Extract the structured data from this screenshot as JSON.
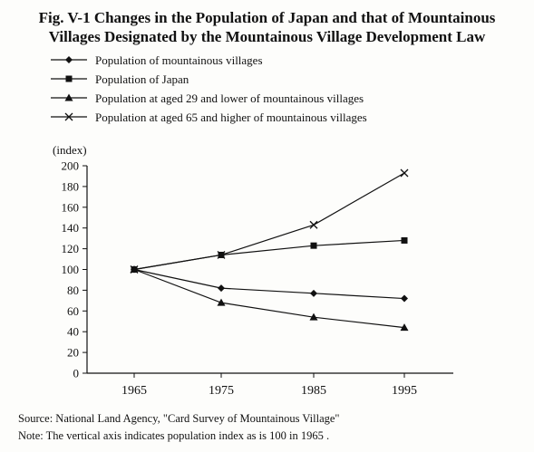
{
  "header": {
    "title_line1": "Fig. V-1   Changes in the Population of Japan and that of Mountainous",
    "title_line2": "Villages Designated by the Mountainous Village Development Law"
  },
  "legend": [
    {
      "label": "Population of mountainous villages",
      "marker": "diamond"
    },
    {
      "label": "Population of Japan",
      "marker": "square"
    },
    {
      "label": "Population at aged 29 and lower of mountainous villages",
      "marker": "triangle"
    },
    {
      "label": "Population at aged 65 and higher of mountainous villages",
      "marker": "x"
    }
  ],
  "footer": {
    "source": "Source: National Land Agency, \"Card Survey of Mountainous Village\"",
    "note": "Note: The vertical axis indicates population index as is 100 in 1965 ."
  },
  "chart_data": {
    "type": "line",
    "ylabel": "(index)",
    "xlabel": "",
    "categories": [
      "1965",
      "1975",
      "1985",
      "1995"
    ],
    "ylim": [
      0,
      200
    ],
    "yticks": [
      0,
      20,
      40,
      60,
      80,
      100,
      120,
      140,
      160,
      180,
      200
    ],
    "grid": false,
    "legend_position": "top-left",
    "series": [
      {
        "name": "Population of mountainous villages",
        "marker": "diamond",
        "values": [
          100,
          82,
          77,
          72
        ]
      },
      {
        "name": "Population of Japan",
        "marker": "square",
        "values": [
          100,
          114,
          123,
          128
        ]
      },
      {
        "name": "Population at aged 29 and lower of mountainous villages",
        "marker": "triangle",
        "values": [
          100,
          68,
          54,
          44
        ]
      },
      {
        "name": "Population at aged 65 and higher of mountainous villages",
        "marker": "x",
        "values": [
          100,
          114,
          143,
          193
        ]
      }
    ]
  }
}
